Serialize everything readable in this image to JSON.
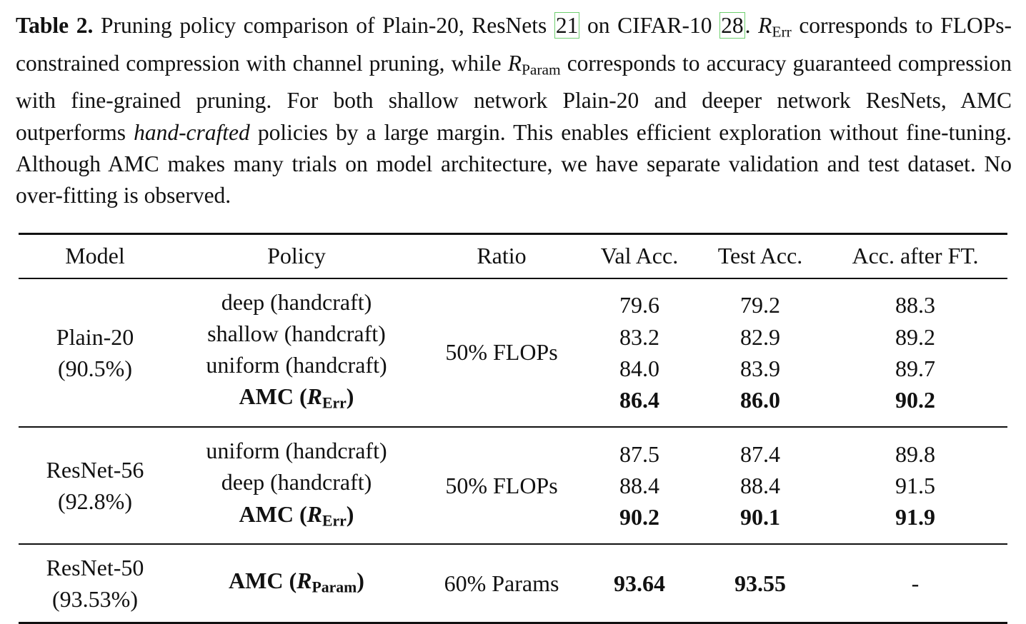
{
  "caption": {
    "label": "Table 2.",
    "text_1": "Pruning policy comparison of Plain-20, ResNets ",
    "ref_1": "21",
    "text_2": " on CIFAR-10 ",
    "ref_2": "28",
    "text_3": ".",
    "r_err_sym": "R",
    "r_err_sub": "Err",
    "text_4": " corresponds to FLOPs-constrained compression with channel pruning, while ",
    "r_param_sym": "R",
    "r_param_sub": "Param",
    "text_5": " corresponds to accuracy guaranteed compression with fine-grained pruning. For both shallow network Plain-20 and deeper network ResNets, AMC outperforms ",
    "italic_phrase": "hand-crafted",
    "text_6": " policies by a large margin. This enables efficient exploration without fine-tuning. Although AMC makes many trials on model architecture, we have separate validation and test dataset. No over-fitting is observed."
  },
  "table": {
    "headers": [
      "Model",
      "Policy",
      "Ratio",
      "Val Acc.",
      "Test Acc.",
      "Acc. after FT."
    ],
    "groups": [
      {
        "model_name": "Plain-20",
        "model_acc": "(90.5%)",
        "ratio": "50% FLOPs",
        "policies": [
          "deep (handcraft)",
          "shallow (handcraft)",
          "uniform (handcraft)"
        ],
        "amc_label": "AMC (",
        "amc_sym": "R",
        "amc_sub": "Err",
        "amc_close": ")",
        "val": [
          "79.6",
          "83.2",
          "84.0",
          "86.4"
        ],
        "test": [
          "79.2",
          "82.9",
          "83.9",
          "86.0"
        ],
        "ft": [
          "88.3",
          "89.2",
          "89.7",
          "90.2"
        ]
      },
      {
        "model_name": "ResNet-56",
        "model_acc": "(92.8%)",
        "ratio": "50% FLOPs",
        "policies": [
          "uniform (handcraft)",
          "deep (handcraft)"
        ],
        "amc_label": "AMC (",
        "amc_sym": "R",
        "amc_sub": "Err",
        "amc_close": ")",
        "val": [
          "87.5",
          "88.4",
          "90.2"
        ],
        "test": [
          "87.4",
          "88.4",
          "90.1"
        ],
        "ft": [
          "89.8",
          "91.5",
          "91.9"
        ]
      },
      {
        "model_name": "ResNet-50",
        "model_acc": "(93.53%)",
        "ratio": "60% Params",
        "amc_label": "AMC (",
        "amc_sym": "R",
        "amc_sub": "Param",
        "amc_close": ")",
        "val": [
          "93.64"
        ],
        "test": [
          "93.55"
        ],
        "ft": [
          "-"
        ]
      }
    ]
  }
}
